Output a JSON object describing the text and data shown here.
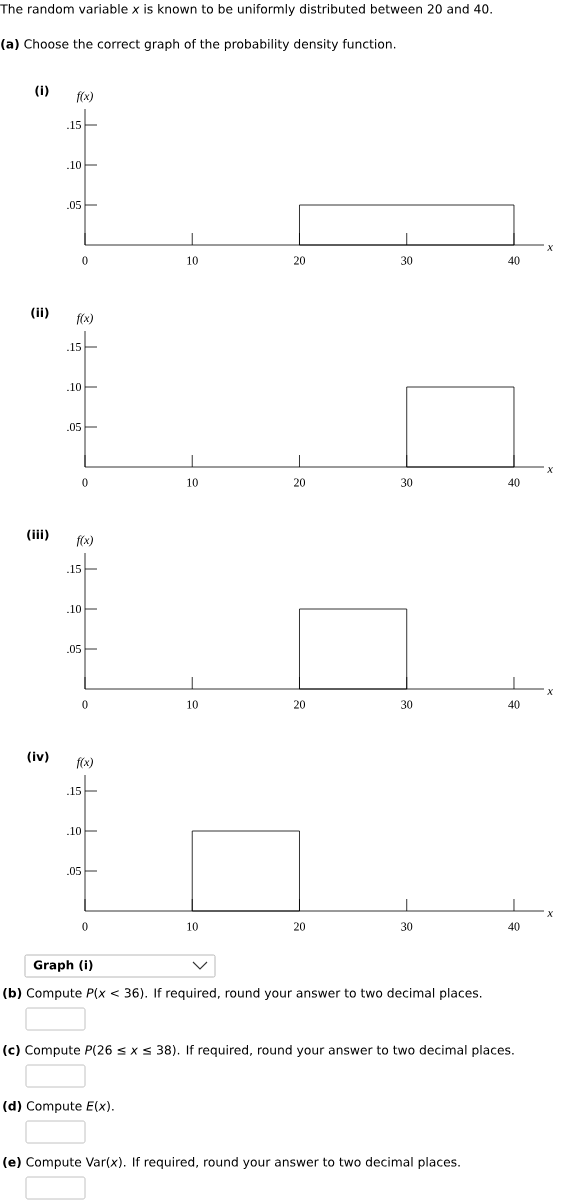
{
  "chart_data": [
    {
      "type": "histogram",
      "title": "(i)",
      "ylabel": "f(x)",
      "xlabel": "x",
      "bins": [
        20,
        40
      ],
      "values": [
        0.05
      ],
      "color": "#000000",
      "xlim": [
        0,
        42.8
      ],
      "ylim": [
        0,
        0.17
      ],
      "xticks": [
        0,
        10,
        20,
        30,
        40
      ],
      "yticks": [
        {
          "value": 0.05,
          "label": ".05"
        },
        {
          "value": 0.1,
          "label": ".10"
        },
        {
          "value": 0.15,
          "label": ".15"
        }
      ],
      "annotations": [
        "The random variable *x* is known to be uniformly distributed between 20 and 40.",
        "**(a)** Choose the correct graph of the probability density function."
      ]
    },
    {
      "type": "histogram",
      "title": "(ii)",
      "ylabel": "f(x)",
      "xlabel": "x",
      "bins": [
        30,
        40
      ],
      "values": [
        0.1
      ],
      "color": "#000000",
      "xlim": [
        0,
        42.8
      ],
      "ylim": [
        0,
        0.17
      ],
      "xticks": [
        0,
        10,
        20,
        30,
        40
      ],
      "yticks": [
        {
          "value": 0.05,
          "label": ".05"
        },
        {
          "value": 0.1,
          "label": ".10"
        },
        {
          "value": 0.15,
          "label": ".15"
        }
      ]
    },
    {
      "type": "histogram",
      "title": "(iii)",
      "ylabel": "f(x)",
      "xlabel": "x",
      "bins": [
        20,
        30
      ],
      "values": [
        0.1
      ],
      "color": "#000000",
      "xlim": [
        0,
        42.8
      ],
      "ylim": [
        0,
        0.17
      ],
      "xticks": [
        0,
        10,
        20,
        30,
        40
      ],
      "yticks": [
        {
          "value": 0.05,
          "label": ".05"
        },
        {
          "value": 0.1,
          "label": ".10"
        },
        {
          "value": 0.15,
          "label": ".15"
        }
      ]
    },
    {
      "type": "histogram",
      "title": "(iv)",
      "ylabel": "f(x)",
      "xlabel": "x",
      "bins": [
        10,
        20
      ],
      "values": [
        0.1
      ],
      "color": "#000000",
      "xlim": [
        0,
        42.8
      ],
      "ylim": [
        0,
        0.17
      ],
      "xticks": [
        0,
        10,
        20,
        30,
        40
      ],
      "yticks": [
        {
          "value": 0.05,
          "label": ".05"
        },
        {
          "value": 0.1,
          "label": ".10"
        },
        {
          "value": 0.15,
          "label": ".15"
        }
      ],
      "annotations": [
        "Graph (i)",
        "**(b)** Compute *P*(*x* < 36). If required, round your answer to two decimal places.",
        "**(c)** Compute *P*(26 ≤ *x* ≤ 38). If required, round your answer to two decimal places.",
        "**(d)** Compute *E*(*x*).",
        "**(e)** Compute Var(*x*). If required, round your answer to two decimal places."
      ]
    }
  ]
}
